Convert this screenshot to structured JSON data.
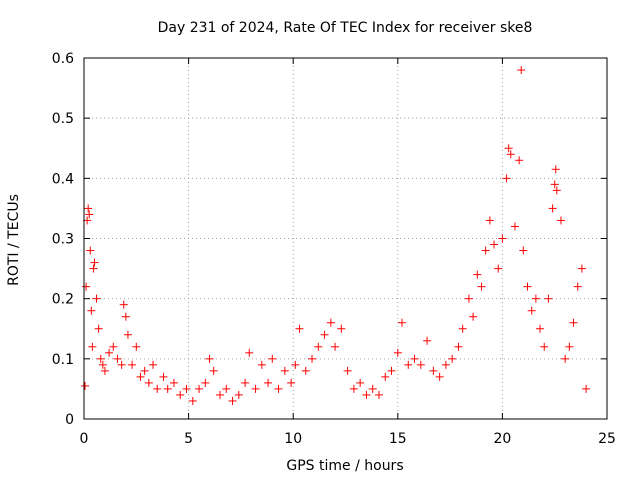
{
  "chart_data": {
    "type": "scatter",
    "title": "Day 231 of 2024, Rate Of TEC Index for receiver ske8",
    "xlabel": "GPS time / hours",
    "ylabel": "ROTI / TECUs",
    "xlim": [
      0,
      25
    ],
    "ylim": [
      0,
      0.6
    ],
    "xticks": [
      0,
      5,
      10,
      15,
      20,
      25
    ],
    "xtick_labels": [
      "0",
      "5",
      "10",
      "15",
      "20",
      "25"
    ],
    "yticks": [
      0,
      0.1,
      0.2,
      0.3,
      0.4,
      0.5,
      0.6
    ],
    "ytick_labels": [
      "0",
      "0.1",
      "0.2",
      "0.3",
      "0.4",
      "0.5",
      "0.6"
    ],
    "grid": true,
    "marker": "+",
    "color": "#ff0000",
    "series": [
      {
        "name": "ROTI",
        "points": [
          [
            0.05,
            0.055
          ],
          [
            0.1,
            0.22
          ],
          [
            0.15,
            0.33
          ],
          [
            0.2,
            0.35
          ],
          [
            0.25,
            0.34
          ],
          [
            0.3,
            0.28
          ],
          [
            0.35,
            0.18
          ],
          [
            0.4,
            0.12
          ],
          [
            0.45,
            0.25
          ],
          [
            0.5,
            0.26
          ],
          [
            0.6,
            0.2
          ],
          [
            0.7,
            0.15
          ],
          [
            0.8,
            0.1
          ],
          [
            0.9,
            0.09
          ],
          [
            1.0,
            0.08
          ],
          [
            1.2,
            0.11
          ],
          [
            1.4,
            0.12
          ],
          [
            1.6,
            0.1
          ],
          [
            1.8,
            0.09
          ],
          [
            1.9,
            0.19
          ],
          [
            2.0,
            0.17
          ],
          [
            2.1,
            0.14
          ],
          [
            2.3,
            0.09
          ],
          [
            2.5,
            0.12
          ],
          [
            2.7,
            0.07
          ],
          [
            2.9,
            0.08
          ],
          [
            3.1,
            0.06
          ],
          [
            3.3,
            0.09
          ],
          [
            3.5,
            0.05
          ],
          [
            3.8,
            0.07
          ],
          [
            4.0,
            0.05
          ],
          [
            4.3,
            0.06
          ],
          [
            4.6,
            0.04
          ],
          [
            4.9,
            0.05
          ],
          [
            5.2,
            0.03
          ],
          [
            5.5,
            0.05
          ],
          [
            5.8,
            0.06
          ],
          [
            6.0,
            0.1
          ],
          [
            6.2,
            0.08
          ],
          [
            6.5,
            0.04
          ],
          [
            6.8,
            0.05
          ],
          [
            7.1,
            0.03
          ],
          [
            7.4,
            0.04
          ],
          [
            7.7,
            0.06
          ],
          [
            7.9,
            0.11
          ],
          [
            8.2,
            0.05
          ],
          [
            8.5,
            0.09
          ],
          [
            8.8,
            0.06
          ],
          [
            9.0,
            0.1
          ],
          [
            9.3,
            0.05
          ],
          [
            9.6,
            0.08
          ],
          [
            9.9,
            0.06
          ],
          [
            10.1,
            0.09
          ],
          [
            10.3,
            0.15
          ],
          [
            10.6,
            0.08
          ],
          [
            10.9,
            0.1
          ],
          [
            11.2,
            0.12
          ],
          [
            11.5,
            0.14
          ],
          [
            11.8,
            0.16
          ],
          [
            12.0,
            0.12
          ],
          [
            12.3,
            0.15
          ],
          [
            12.6,
            0.08
          ],
          [
            12.9,
            0.05
          ],
          [
            13.2,
            0.06
          ],
          [
            13.5,
            0.04
          ],
          [
            13.8,
            0.05
          ],
          [
            14.1,
            0.04
          ],
          [
            14.4,
            0.07
          ],
          [
            14.7,
            0.08
          ],
          [
            15.0,
            0.11
          ],
          [
            15.2,
            0.16
          ],
          [
            15.5,
            0.09
          ],
          [
            15.8,
            0.1
          ],
          [
            16.1,
            0.09
          ],
          [
            16.4,
            0.13
          ],
          [
            16.7,
            0.08
          ],
          [
            17.0,
            0.07
          ],
          [
            17.3,
            0.09
          ],
          [
            17.6,
            0.1
          ],
          [
            17.9,
            0.12
          ],
          [
            18.1,
            0.15
          ],
          [
            18.4,
            0.2
          ],
          [
            18.6,
            0.17
          ],
          [
            18.8,
            0.24
          ],
          [
            19.0,
            0.22
          ],
          [
            19.2,
            0.28
          ],
          [
            19.4,
            0.33
          ],
          [
            19.6,
            0.29
          ],
          [
            19.8,
            0.25
          ],
          [
            20.0,
            0.3
          ],
          [
            20.2,
            0.4
          ],
          [
            20.3,
            0.45
          ],
          [
            20.4,
            0.44
          ],
          [
            20.6,
            0.32
          ],
          [
            20.8,
            0.43
          ],
          [
            20.9,
            0.58
          ],
          [
            21.0,
            0.28
          ],
          [
            21.2,
            0.22
          ],
          [
            21.4,
            0.18
          ],
          [
            21.6,
            0.2
          ],
          [
            21.8,
            0.15
          ],
          [
            22.0,
            0.12
          ],
          [
            22.2,
            0.2
          ],
          [
            22.4,
            0.35
          ],
          [
            22.5,
            0.39
          ],
          [
            22.55,
            0.415
          ],
          [
            22.6,
            0.38
          ],
          [
            22.8,
            0.33
          ],
          [
            23.0,
            0.1
          ],
          [
            23.2,
            0.12
          ],
          [
            23.4,
            0.16
          ],
          [
            23.6,
            0.22
          ],
          [
            23.8,
            0.25
          ],
          [
            24.0,
            0.05
          ]
        ]
      }
    ]
  }
}
